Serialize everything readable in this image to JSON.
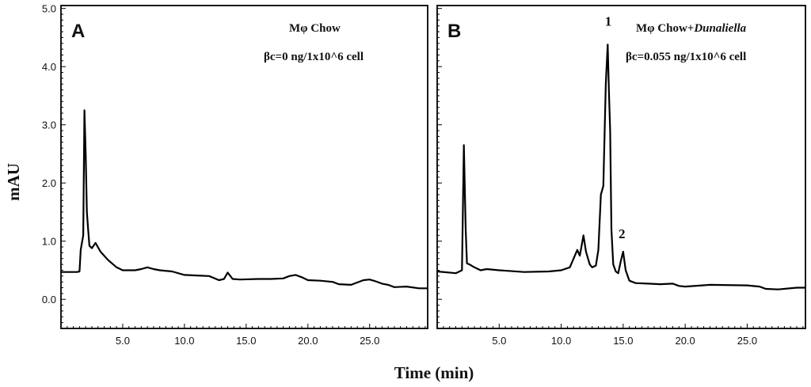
{
  "chart_data": {
    "type": "line",
    "xlabel": "Time (min)",
    "ylabel": "mAU",
    "xlim": [
      0,
      29.7
    ],
    "ylim": [
      -0.5,
      5.05
    ],
    "x_ticks": [
      "5.0",
      "10.0",
      "15.0",
      "20.0",
      "25.0"
    ],
    "y_ticks": [
      "5.0",
      "4.0",
      "3.0",
      "2.0",
      "1.0",
      "0.0"
    ],
    "grid": false,
    "panels": [
      {
        "letter": "A",
        "annotation_line1": "Mφ Chow",
        "annotation_line2": "βc=0 ng/1x10^6 cell",
        "peak_labels": [],
        "series": [
          {
            "x": [
              0,
              1.3,
              1.5,
              1.6,
              1.8,
              1.9,
              2.0,
              2.1,
              2.2,
              2.3,
              2.5,
              2.8,
              3.2,
              3.8,
              4.5,
              5.0,
              6.0,
              6.5,
              7.0,
              7.5,
              8.0,
              9.0,
              10.0,
              11.0,
              12.0,
              12.8,
              13.2,
              13.5,
              13.9,
              14.5,
              16.0,
              17.0,
              18.0,
              18.5,
              19.0,
              19.5,
              20.0,
              21.0,
              22.0,
              22.5,
              23.5,
              24.5,
              25.0,
              25.5,
              26.0,
              26.5,
              27.0,
              28.0,
              29.0,
              29.7
            ],
            "y": [
              0.47,
              0.47,
              0.48,
              0.85,
              1.1,
              3.25,
              2.5,
              1.5,
              1.2,
              0.92,
              0.88,
              0.97,
              0.82,
              0.68,
              0.55,
              0.5,
              0.5,
              0.52,
              0.55,
              0.52,
              0.5,
              0.48,
              0.42,
              0.41,
              0.4,
              0.33,
              0.35,
              0.46,
              0.35,
              0.34,
              0.35,
              0.35,
              0.36,
              0.4,
              0.42,
              0.38,
              0.33,
              0.32,
              0.3,
              0.26,
              0.25,
              0.33,
              0.34,
              0.31,
              0.27,
              0.25,
              0.21,
              0.22,
              0.19,
              0.19
            ]
          }
        ]
      },
      {
        "letter": "B",
        "annotation_line1": "Mφ Chow+",
        "annotation_italic": "Dunaliella",
        "annotation_line2": "βc=0.055 ng/1x10^6 cell",
        "peak_labels": [
          {
            "text": "1",
            "x": 13.8,
            "y": 4.7
          },
          {
            "text": "2",
            "x": 14.9,
            "y": 1.05
          }
        ],
        "series": [
          {
            "x": [
              0,
              1.5,
              2.0,
              2.15,
              2.3,
              2.4,
              2.6,
              3.0,
              3.5,
              4.0,
              5.0,
              7.0,
              9.0,
              10.0,
              10.7,
              11.0,
              11.3,
              11.5,
              11.8,
              12.0,
              12.3,
              12.5,
              12.8,
              13.0,
              13.2,
              13.4,
              13.6,
              13.75,
              13.85,
              13.95,
              14.05,
              14.2,
              14.4,
              14.6,
              14.8,
              15.0,
              15.2,
              15.5,
              16.0,
              17.0,
              18.0,
              19.0,
              19.5,
              20.0,
              22.0,
              25.0,
              26.0,
              26.5,
              27.5,
              29.0,
              29.7
            ],
            "y": [
              0.48,
              0.45,
              0.5,
              2.65,
              1.2,
              0.62,
              0.6,
              0.55,
              0.5,
              0.52,
              0.5,
              0.47,
              0.48,
              0.5,
              0.55,
              0.7,
              0.85,
              0.75,
              1.1,
              0.82,
              0.6,
              0.55,
              0.58,
              0.85,
              1.8,
              1.95,
              3.7,
              4.38,
              3.6,
              2.9,
              1.2,
              0.6,
              0.48,
              0.45,
              0.65,
              0.82,
              0.5,
              0.32,
              0.28,
              0.27,
              0.26,
              0.27,
              0.23,
              0.22,
              0.25,
              0.24,
              0.22,
              0.18,
              0.17,
              0.2,
              0.2
            ]
          }
        ]
      }
    ]
  }
}
